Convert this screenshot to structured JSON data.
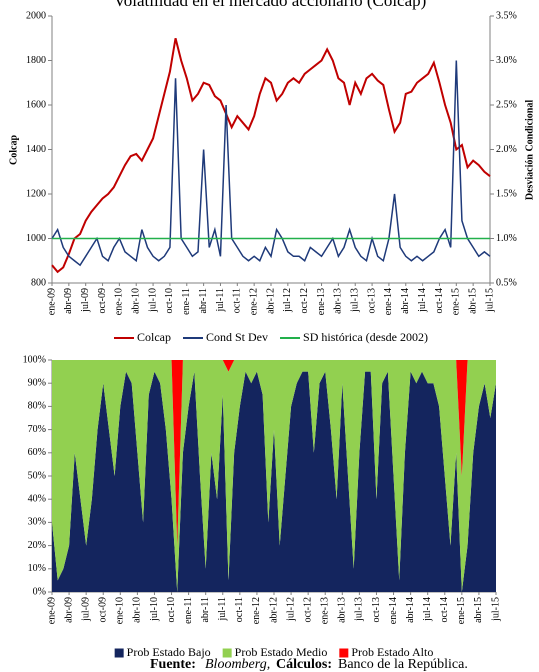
{
  "chart_data": [
    {
      "type": "line",
      "title": "Volatilidad en el mercado accionario (Colcap)",
      "ylabel": "Colcap",
      "y2label": "Desviación Condicional",
      "categories": [
        "ene-09",
        null,
        null,
        "abr-09",
        null,
        null,
        "jul-09",
        null,
        null,
        "oct-09",
        null,
        null,
        "ene-10",
        null,
        null,
        "abr-10",
        null,
        null,
        "jul-10",
        null,
        null,
        "oct-10",
        null,
        null,
        "ene-11",
        null,
        null,
        "abr-11",
        null,
        null,
        "jul-11",
        null,
        null,
        "oct-11",
        null,
        null,
        "ene-12",
        null,
        null,
        "abr-12",
        null,
        null,
        "jul-12",
        null,
        null,
        "oct-12",
        null,
        null,
        "ene-13",
        null,
        null,
        "abr-13",
        null,
        null,
        "jul-13",
        null,
        null,
        "oct-13",
        null,
        null,
        "ene-14",
        null,
        null,
        "abr-14",
        null,
        null,
        "jul-14",
        null,
        null,
        "oct-14",
        null,
        null,
        "ene-15",
        null,
        null,
        "abr-15",
        null,
        null,
        "jul-15"
      ],
      "ylim": [
        800,
        2000
      ],
      "yticks": [
        800,
        1000,
        1200,
        1400,
        1600,
        1800,
        2000
      ],
      "y2lim": [
        0.5,
        3.5
      ],
      "y2ticks": [
        {
          "value": 0.5,
          "label": "0.5%"
        },
        {
          "value": 1.0,
          "label": "1.0%"
        },
        {
          "value": 1.5,
          "label": "1.5%"
        },
        {
          "value": 2.0,
          "label": "2.0%"
        },
        {
          "value": 2.5,
          "label": "2.5%"
        },
        {
          "value": 3.0,
          "label": "3.0%"
        },
        {
          "value": 3.5,
          "label": "3.5%"
        }
      ],
      "legend": "bottom",
      "series": [
        {
          "name": "Colcap",
          "color": "#c00000",
          "values": [
            880,
            850,
            870,
            930,
            1000,
            1020,
            1080,
            1120,
            1150,
            1180,
            1200,
            1230,
            1280,
            1330,
            1370,
            1380,
            1350,
            1400,
            1450,
            1550,
            1650,
            1750,
            1900,
            1800,
            1720,
            1620,
            1650,
            1700,
            1690,
            1640,
            1620,
            1560,
            1500,
            1550,
            1520,
            1490,
            1550,
            1650,
            1720,
            1700,
            1620,
            1650,
            1700,
            1720,
            1700,
            1740,
            1760,
            1780,
            1800,
            1850,
            1800,
            1720,
            1700,
            1600,
            1700,
            1650,
            1720,
            1740,
            1710,
            1690,
            1580,
            1480,
            1520,
            1650,
            1660,
            1700,
            1720,
            1740,
            1790,
            1700,
            1600,
            1520,
            1400,
            1420,
            1320,
            1350,
            1330,
            1300,
            1280
          ]
        },
        {
          "name": "Cond St Dev",
          "color": "#1f3a7a",
          "axis": "y2",
          "values": [
            1.0,
            1.1,
            0.9,
            0.8,
            0.75,
            0.7,
            0.8,
            0.9,
            1.0,
            0.8,
            0.75,
            0.9,
            1.0,
            0.85,
            0.8,
            0.75,
            1.1,
            0.9,
            0.8,
            0.75,
            0.8,
            0.9,
            2.8,
            1.0,
            0.9,
            0.8,
            0.85,
            2.0,
            0.9,
            1.1,
            0.8,
            2.5,
            1.0,
            0.9,
            0.8,
            0.75,
            0.8,
            0.75,
            0.9,
            0.8,
            1.1,
            1.0,
            0.85,
            0.8,
            0.8,
            0.75,
            0.9,
            0.85,
            0.8,
            0.9,
            1.0,
            0.8,
            0.9,
            1.1,
            0.9,
            0.8,
            0.75,
            1.0,
            0.8,
            0.75,
            1.0,
            1.5,
            0.9,
            0.8,
            0.75,
            0.8,
            0.75,
            0.8,
            0.85,
            1.0,
            1.1,
            0.9,
            3.0,
            1.2,
            1.0,
            0.9,
            0.8,
            0.85,
            0.8
          ]
        },
        {
          "name": "SD histórica (desde 2002)",
          "color": "#22b04b",
          "axis": "y2",
          "values": [
            1.0,
            1.0,
            1.0,
            1.0,
            1.0,
            1.0,
            1.0,
            1.0,
            1.0,
            1.0,
            1.0,
            1.0,
            1.0,
            1.0,
            1.0,
            1.0,
            1.0,
            1.0,
            1.0,
            1.0,
            1.0,
            1.0,
            1.0,
            1.0,
            1.0,
            1.0,
            1.0,
            1.0,
            1.0,
            1.0,
            1.0,
            1.0,
            1.0,
            1.0,
            1.0,
            1.0,
            1.0,
            1.0,
            1.0,
            1.0,
            1.0,
            1.0,
            1.0,
            1.0,
            1.0,
            1.0,
            1.0,
            1.0,
            1.0,
            1.0,
            1.0,
            1.0,
            1.0,
            1.0,
            1.0,
            1.0,
            1.0,
            1.0,
            1.0,
            1.0,
            1.0,
            1.0,
            1.0,
            1.0,
            1.0,
            1.0,
            1.0,
            1.0,
            1.0,
            1.0,
            1.0,
            1.0,
            1.0,
            1.0,
            1.0,
            1.0,
            1.0,
            1.0,
            1.0
          ]
        }
      ]
    },
    {
      "type": "area",
      "stacked": true,
      "categories": [
        "ene-09",
        null,
        null,
        "abr-09",
        null,
        null,
        "jul-09",
        null,
        null,
        "oct-09",
        null,
        null,
        "ene-10",
        null,
        null,
        "abr-10",
        null,
        null,
        "jul-10",
        null,
        null,
        "oct-10",
        null,
        null,
        "ene-11",
        null,
        null,
        "abr-11",
        null,
        null,
        "jul-11",
        null,
        null,
        "oct-11",
        null,
        null,
        "ene-12",
        null,
        null,
        "abr-12",
        null,
        null,
        "jul-12",
        null,
        null,
        "oct-12",
        null,
        null,
        "ene-13",
        null,
        null,
        "abr-13",
        null,
        null,
        "jul-13",
        null,
        null,
        "oct-13",
        null,
        null,
        "ene-14",
        null,
        null,
        "abr-14",
        null,
        null,
        "jul-14",
        null,
        null,
        "oct-14",
        null,
        null,
        "ene-15",
        null,
        null,
        "abr-15",
        null,
        null,
        "jul-15"
      ],
      "ylim": [
        0,
        100
      ],
      "yticks": [
        {
          "value": 0,
          "label": "0%"
        },
        {
          "value": 10,
          "label": "10%"
        },
        {
          "value": 20,
          "label": "20%"
        },
        {
          "value": 30,
          "label": "30%"
        },
        {
          "value": 40,
          "label": "40%"
        },
        {
          "value": 50,
          "label": "50%"
        },
        {
          "value": 60,
          "label": "60%"
        },
        {
          "value": 70,
          "label": "70%"
        },
        {
          "value": 80,
          "label": "80%"
        },
        {
          "value": 90,
          "label": "90%"
        },
        {
          "value": 100,
          "label": "100%"
        }
      ],
      "legend": "bottom",
      "series": [
        {
          "name": "Prob Estado Bajo",
          "color": "#14255e",
          "values": [
            30,
            5,
            10,
            20,
            60,
            40,
            20,
            40,
            70,
            90,
            70,
            50,
            80,
            95,
            90,
            60,
            30,
            85,
            95,
            90,
            70,
            40,
            0,
            60,
            80,
            95,
            50,
            10,
            60,
            40,
            85,
            5,
            60,
            80,
            95,
            90,
            95,
            85,
            30,
            70,
            20,
            50,
            80,
            90,
            95,
            95,
            60,
            90,
            95,
            70,
            40,
            90,
            50,
            10,
            60,
            95,
            95,
            40,
            90,
            95,
            50,
            5,
            60,
            95,
            90,
            95,
            90,
            90,
            80,
            50,
            20,
            60,
            0,
            20,
            60,
            80,
            90,
            75,
            90
          ]
        },
        {
          "name": "Prob Estado Medio",
          "color": "#92d050",
          "values": [
            70,
            95,
            90,
            80,
            40,
            60,
            80,
            60,
            30,
            10,
            30,
            50,
            20,
            5,
            10,
            40,
            70,
            15,
            5,
            10,
            30,
            60,
            20,
            40,
            20,
            5,
            50,
            90,
            40,
            60,
            15,
            90,
            40,
            20,
            5,
            10,
            5,
            15,
            70,
            30,
            80,
            50,
            20,
            10,
            5,
            5,
            40,
            10,
            5,
            30,
            60,
            10,
            50,
            90,
            40,
            5,
            5,
            60,
            10,
            5,
            50,
            95,
            40,
            5,
            10,
            5,
            10,
            10,
            20,
            50,
            80,
            40,
            50,
            80,
            40,
            20,
            10,
            25,
            10
          ]
        },
        {
          "name": "Prob Estado Alto",
          "color": "#ff0000",
          "values": [
            0,
            0,
            0,
            0,
            0,
            0,
            0,
            0,
            0,
            0,
            0,
            0,
            0,
            0,
            0,
            0,
            0,
            0,
            0,
            0,
            0,
            0,
            80,
            0,
            0,
            0,
            0,
            0,
            0,
            0,
            0,
            5,
            0,
            0,
            0,
            0,
            0,
            0,
            0,
            0,
            0,
            0,
            0,
            0,
            0,
            0,
            0,
            0,
            0,
            0,
            0,
            0,
            0,
            0,
            0,
            0,
            0,
            0,
            0,
            0,
            0,
            0,
            0,
            0,
            0,
            0,
            0,
            0,
            0,
            0,
            0,
            0,
            50,
            0,
            0,
            0,
            0,
            0,
            0
          ]
        }
      ]
    }
  ],
  "footer": {
    "source_label": "Fuente:",
    "source": "Bloomberg,",
    "calc_label": "Cálculos:",
    "calc": "Banco de la República."
  }
}
